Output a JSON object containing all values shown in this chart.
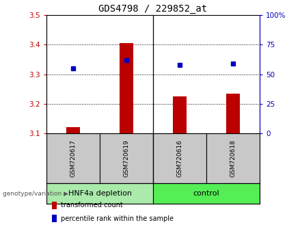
{
  "title": "GDS4798 / 229852_at",
  "samples": [
    "GSM720617",
    "GSM720619",
    "GSM720616",
    "GSM720618"
  ],
  "group_labels": [
    "HNF4a depletion",
    "control"
  ],
  "group_color_1": "#aaeaaa",
  "group_color_2": "#55ee55",
  "transformed_counts": [
    3.12,
    3.405,
    3.225,
    3.235
  ],
  "percentile_ranks": [
    55,
    62,
    58,
    59
  ],
  "y_min": 3.1,
  "y_max": 3.5,
  "y_ticks": [
    3.1,
    3.2,
    3.3,
    3.4,
    3.5
  ],
  "y_ticks_right": [
    0,
    25,
    50,
    75,
    100
  ],
  "bar_color": "#bb0000",
  "dot_color": "#0000bb",
  "bar_bottom": 3.1,
  "title_fontsize": 10,
  "tick_fontsize": 7.5,
  "sample_fontsize": 6.5,
  "group_fontsize": 8,
  "legend_fontsize": 7
}
